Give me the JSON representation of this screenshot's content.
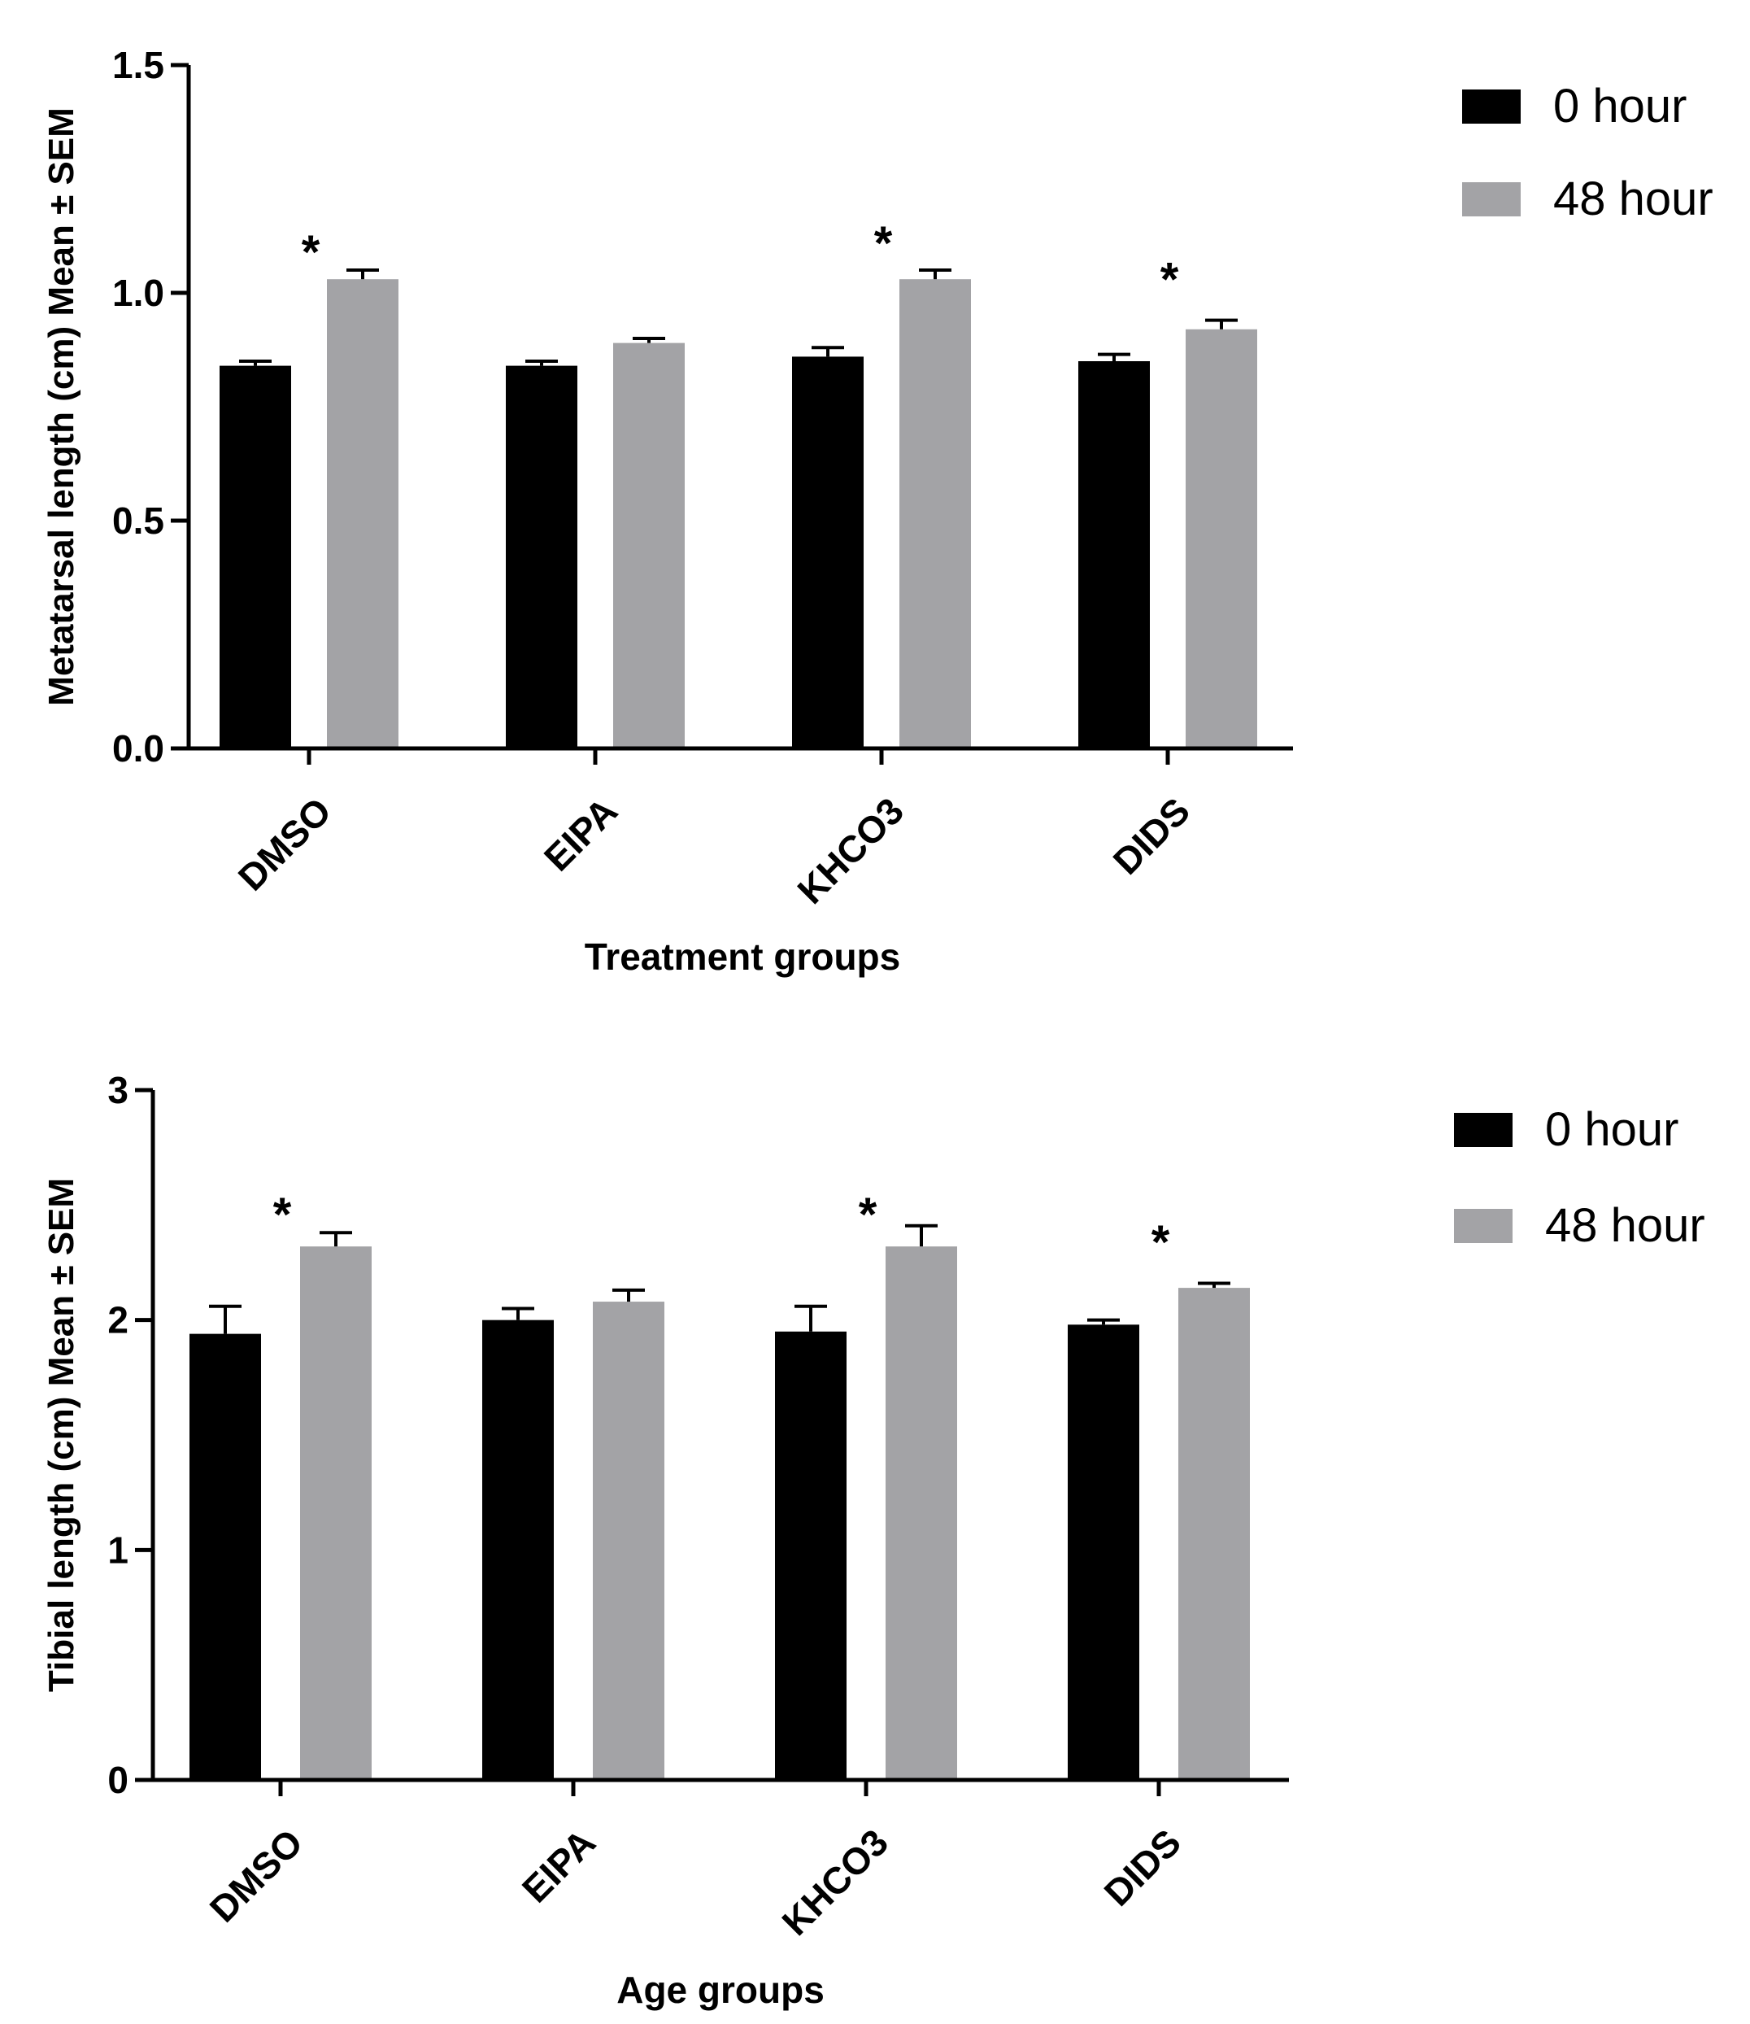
{
  "chart_data": [
    {
      "type": "bar",
      "title": "",
      "xlabel": "Treatment groups",
      "ylabel": "Metatarsal length (cm) Mean ± SEM",
      "categories": [
        "DMSO",
        "EIPA",
        "KHCO3",
        "DIDS"
      ],
      "ylim": [
        0,
        1.5
      ],
      "yticks": [
        "0.0",
        "0.5",
        "1.0",
        "1.5"
      ],
      "yticks_values": [
        0,
        0.5,
        1.0,
        1.5
      ],
      "grid": false,
      "legend_position": "top-right",
      "series": [
        {
          "name": "0 hour",
          "color": "#000000",
          "values": [
            0.84,
            0.84,
            0.86,
            0.85
          ],
          "errors": [
            0.01,
            0.01,
            0.02,
            0.015
          ]
        },
        {
          "name": "48 hour",
          "color": "#a3a3a6",
          "values": [
            1.03,
            0.89,
            1.03,
            0.92
          ],
          "errors": [
            0.02,
            0.01,
            0.02,
            0.02
          ]
        }
      ],
      "annotations": [
        {
          "category": "DMSO",
          "text": "*",
          "y": 1.1
        },
        {
          "category": "KHCO3",
          "text": "*",
          "y": 1.12
        },
        {
          "category": "DIDS",
          "text": "*",
          "y": 1.04
        }
      ]
    },
    {
      "type": "bar",
      "title": "",
      "xlabel": "Age groups",
      "ylabel": "Tibial length (cm) Mean ± SEM",
      "categories": [
        "DMSO",
        "EIPA",
        "KHCO3",
        "DIDS"
      ],
      "ylim": [
        0,
        3
      ],
      "yticks": [
        "0",
        "1",
        "2",
        "3"
      ],
      "yticks_values": [
        0,
        1,
        2,
        3
      ],
      "grid": false,
      "legend_position": "top-right",
      "series": [
        {
          "name": "0 hour",
          "color": "#000000",
          "values": [
            1.94,
            2.0,
            1.95,
            1.98
          ],
          "errors": [
            0.12,
            0.05,
            0.11,
            0.02
          ]
        },
        {
          "name": "48 hour",
          "color": "#a3a3a6",
          "values": [
            2.32,
            2.08,
            2.32,
            2.14
          ],
          "errors": [
            0.06,
            0.05,
            0.09,
            0.02
          ]
        }
      ],
      "annotations": [
        {
          "category": "DMSO",
          "text": "*",
          "y": 2.48
        },
        {
          "category": "KHCO3",
          "text": "*",
          "y": 2.48
        },
        {
          "category": "DIDS",
          "text": "*",
          "y": 2.36
        }
      ]
    }
  ]
}
